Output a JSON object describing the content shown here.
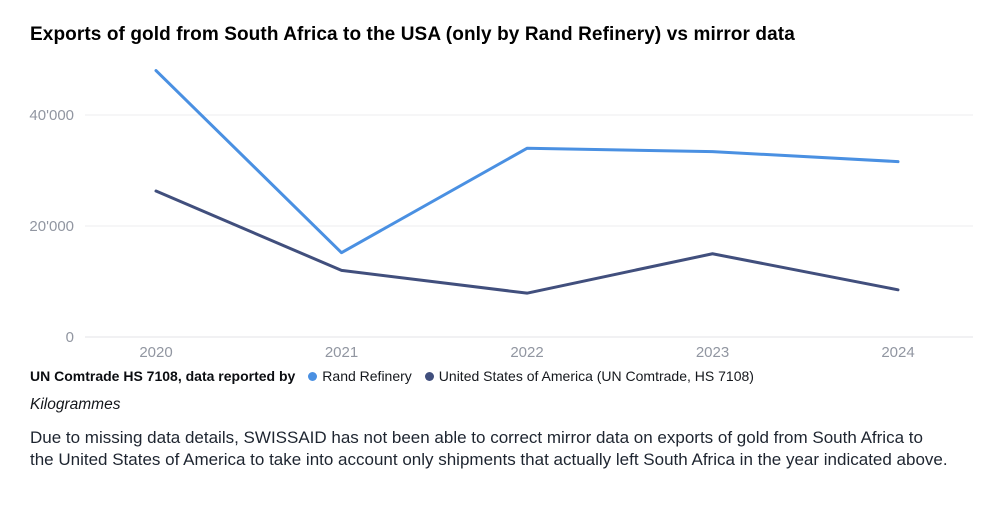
{
  "title": "Exports of gold from South Africa to the USA (only by Rand Refinery) vs mirror data",
  "legend": {
    "prefix": "UN Comtrade HS 7108, data reported by"
  },
  "unit_label": "Kilogrammes",
  "footnote": {
    "lines": [
      "Due to missing data details, SWISSAID has not been able to correct mirror data on exports of gold from South Africa to",
      "the United States of America to take into account only shipments that actually left South Africa in the year indicated above."
    ]
  },
  "chart_data": {
    "type": "line",
    "title": "Exports of gold from South Africa to the USA (only by Rand Refinery) vs mirror data",
    "categories": [
      "2020",
      "2021",
      "2022",
      "2023",
      "2024"
    ],
    "series": [
      {
        "name": "Rand Refinery",
        "color": "#4a90e2",
        "values": [
          48000,
          15200,
          34000,
          33400,
          31600
        ]
      },
      {
        "name": "United States of America (UN Comtrade, HS 7108)",
        "color": "#414f7d",
        "values": [
          26300,
          12000,
          7900,
          15000,
          8500
        ]
      }
    ],
    "xlabel": "",
    "ylabel": "Kilogrammes",
    "ylim": [
      0,
      48000
    ],
    "yticks": [
      {
        "value": 0,
        "label": "0"
      },
      {
        "value": 20000,
        "label": "20'000"
      },
      {
        "value": 40000,
        "label": "40'000"
      }
    ],
    "grid": "horizontal",
    "legend_position": "bottom"
  }
}
